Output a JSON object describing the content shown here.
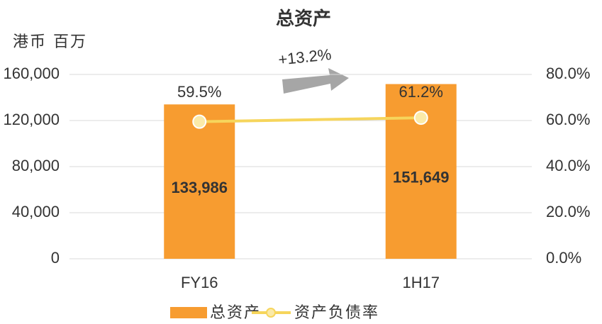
{
  "chart_data": {
    "type": "bar_line",
    "title": "总资产",
    "y_axis_label": "港币 百万",
    "annotation": "+13.2%",
    "categories": [
      "FY16",
      "1H17"
    ],
    "series": [
      {
        "name": "总资产",
        "type": "bar",
        "color": "#f79c30",
        "values": [
          133986,
          151649
        ],
        "value_labels": [
          "133,986",
          "151,649"
        ]
      },
      {
        "name": "资产负债率",
        "type": "line",
        "axis": "y2",
        "color": "#f6d55c",
        "values": [
          59.5,
          61.2
        ],
        "value_labels": [
          "59.5%",
          "61.2%"
        ]
      }
    ],
    "ylim": [
      0,
      160000
    ],
    "yticks": [
      0,
      {
        "value": 40000,
        "label": "40,000"
      },
      {
        "value": 80000,
        "label": "80,000"
      },
      {
        "value": 120000,
        "label": "120,000"
      },
      {
        "value": 160000,
        "label": "160,000"
      }
    ],
    "y2lim": [
      0,
      80
    ],
    "y2ticks": [
      {
        "value": 0,
        "label": "0.0%"
      },
      {
        "value": 20,
        "label": "20.0%"
      },
      {
        "value": 40,
        "label": "40.0%"
      },
      {
        "value": 60,
        "label": "60.0%"
      },
      {
        "value": 80,
        "label": "80.0%"
      }
    ],
    "grid": true,
    "legend": "bottom"
  }
}
